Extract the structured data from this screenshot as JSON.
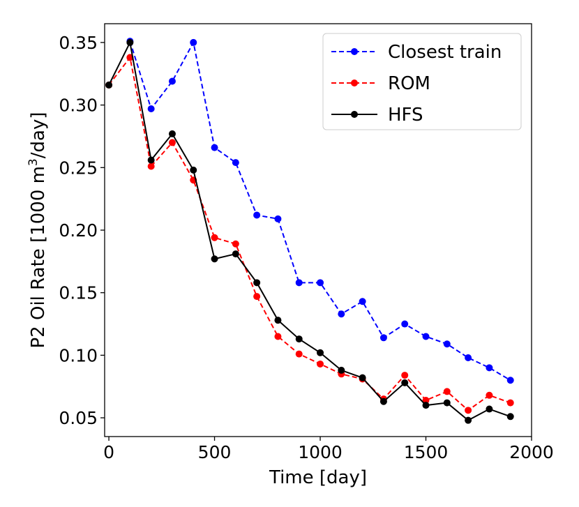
{
  "chart_data": {
    "type": "line",
    "xlabel": "Time [day]",
    "ylabel_prefix": "P2 Oil Rate [1000 m",
    "ylabel_sup": "3",
    "ylabel_suffix": "/day]",
    "xlim": [
      -20,
      2000
    ],
    "ylim": [
      0.035,
      0.365
    ],
    "xticks": [
      0,
      500,
      1000,
      1500,
      2000
    ],
    "xtick_labels": [
      "0",
      "500",
      "1000",
      "1500",
      "2000"
    ],
    "yticks": [
      0.05,
      0.1,
      0.15,
      0.2,
      0.25,
      0.3,
      0.35
    ],
    "ytick_labels": [
      "0.05",
      "0.10",
      "0.15",
      "0.20",
      "0.25",
      "0.30",
      "0.35"
    ],
    "grid": false,
    "legend_position": "top-right",
    "x": [
      0,
      100,
      200,
      300,
      400,
      500,
      600,
      700,
      800,
      900,
      1000,
      1100,
      1200,
      1300,
      1400,
      1500,
      1600,
      1700,
      1800,
      1900
    ],
    "series": [
      {
        "name": "Closest train",
        "color": "#0000ff",
        "dashed": true,
        "x": [
          100,
          200,
          300,
          400,
          500,
          600,
          700,
          800,
          900,
          1000,
          1100,
          1200,
          1300,
          1400,
          1500,
          1600,
          1700,
          1800,
          1900
        ],
        "values": [
          0.351,
          0.297,
          0.319,
          0.35,
          0.266,
          0.254,
          0.212,
          0.209,
          0.158,
          0.158,
          0.133,
          0.143,
          0.114,
          0.125,
          0.115,
          0.109,
          0.098,
          0.09,
          0.08
        ]
      },
      {
        "name": "ROM",
        "color": "#ff0000",
        "dashed": true,
        "x": [
          0,
          100,
          200,
          300,
          400,
          500,
          600,
          700,
          800,
          900,
          1000,
          1100,
          1200,
          1300,
          1400,
          1500,
          1600,
          1700,
          1800,
          1900
        ],
        "values": [
          0.316,
          0.338,
          0.251,
          0.27,
          0.24,
          0.194,
          0.189,
          0.147,
          0.115,
          0.101,
          0.093,
          0.085,
          0.081,
          0.065,
          0.084,
          0.064,
          0.071,
          0.056,
          0.068,
          0.062
        ]
      },
      {
        "name": "HFS",
        "color": "#000000",
        "dashed": false,
        "x": [
          0,
          100,
          200,
          300,
          400,
          500,
          600,
          700,
          800,
          900,
          1000,
          1100,
          1200,
          1300,
          1400,
          1500,
          1600,
          1700,
          1800,
          1900
        ],
        "values": [
          0.316,
          0.35,
          0.256,
          0.277,
          0.248,
          0.177,
          0.181,
          0.158,
          0.128,
          0.113,
          0.102,
          0.088,
          0.082,
          0.063,
          0.078,
          0.06,
          0.062,
          0.048,
          0.057,
          0.051
        ]
      }
    ]
  }
}
